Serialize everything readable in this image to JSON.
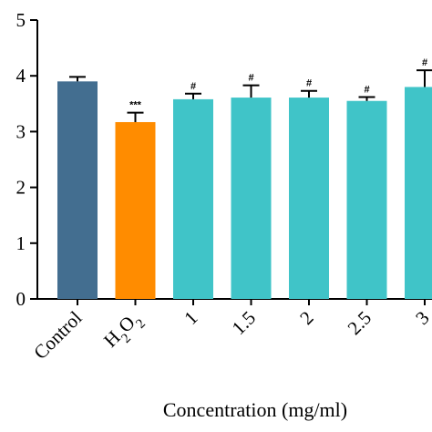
{
  "chart_data": {
    "type": "bar",
    "title": "",
    "xlabel": "Concentration (mg/ml)",
    "ylabel": "",
    "ylim": [
      0,
      5
    ],
    "yticks": [
      "0",
      "1",
      "2",
      "3",
      "4",
      "5"
    ],
    "categories": [
      "Control",
      "H2O2",
      "1",
      "1.5",
      "2",
      "2.5",
      "3"
    ],
    "category_labels": [
      {
        "parts": [
          {
            "t": "Control"
          }
        ]
      },
      {
        "parts": [
          {
            "t": "H"
          },
          {
            "t": "2",
            "sub": true
          },
          {
            "t": "O"
          },
          {
            "t": "2",
            "sub": true
          }
        ]
      },
      {
        "parts": [
          {
            "t": "1"
          }
        ]
      },
      {
        "parts": [
          {
            "t": "1.5"
          }
        ]
      },
      {
        "parts": [
          {
            "t": "2"
          }
        ]
      },
      {
        "parts": [
          {
            "t": "2.5"
          }
        ]
      },
      {
        "parts": [
          {
            "t": "3"
          }
        ]
      }
    ],
    "values": [
      3.9,
      3.17,
      3.58,
      3.61,
      3.61,
      3.55,
      3.8
    ],
    "errors": [
      0.08,
      0.17,
      0.1,
      0.22,
      0.12,
      0.07,
      0.3
    ],
    "significance": [
      "",
      "***",
      "#",
      "#",
      "#",
      "#",
      "#"
    ],
    "colors": [
      "#436e90",
      "#ff8c00",
      "#40c4c8",
      "#40c4c8",
      "#40c4c8",
      "#40c4c8",
      "#40c4c8"
    ],
    "grid": false,
    "legend": "none"
  }
}
